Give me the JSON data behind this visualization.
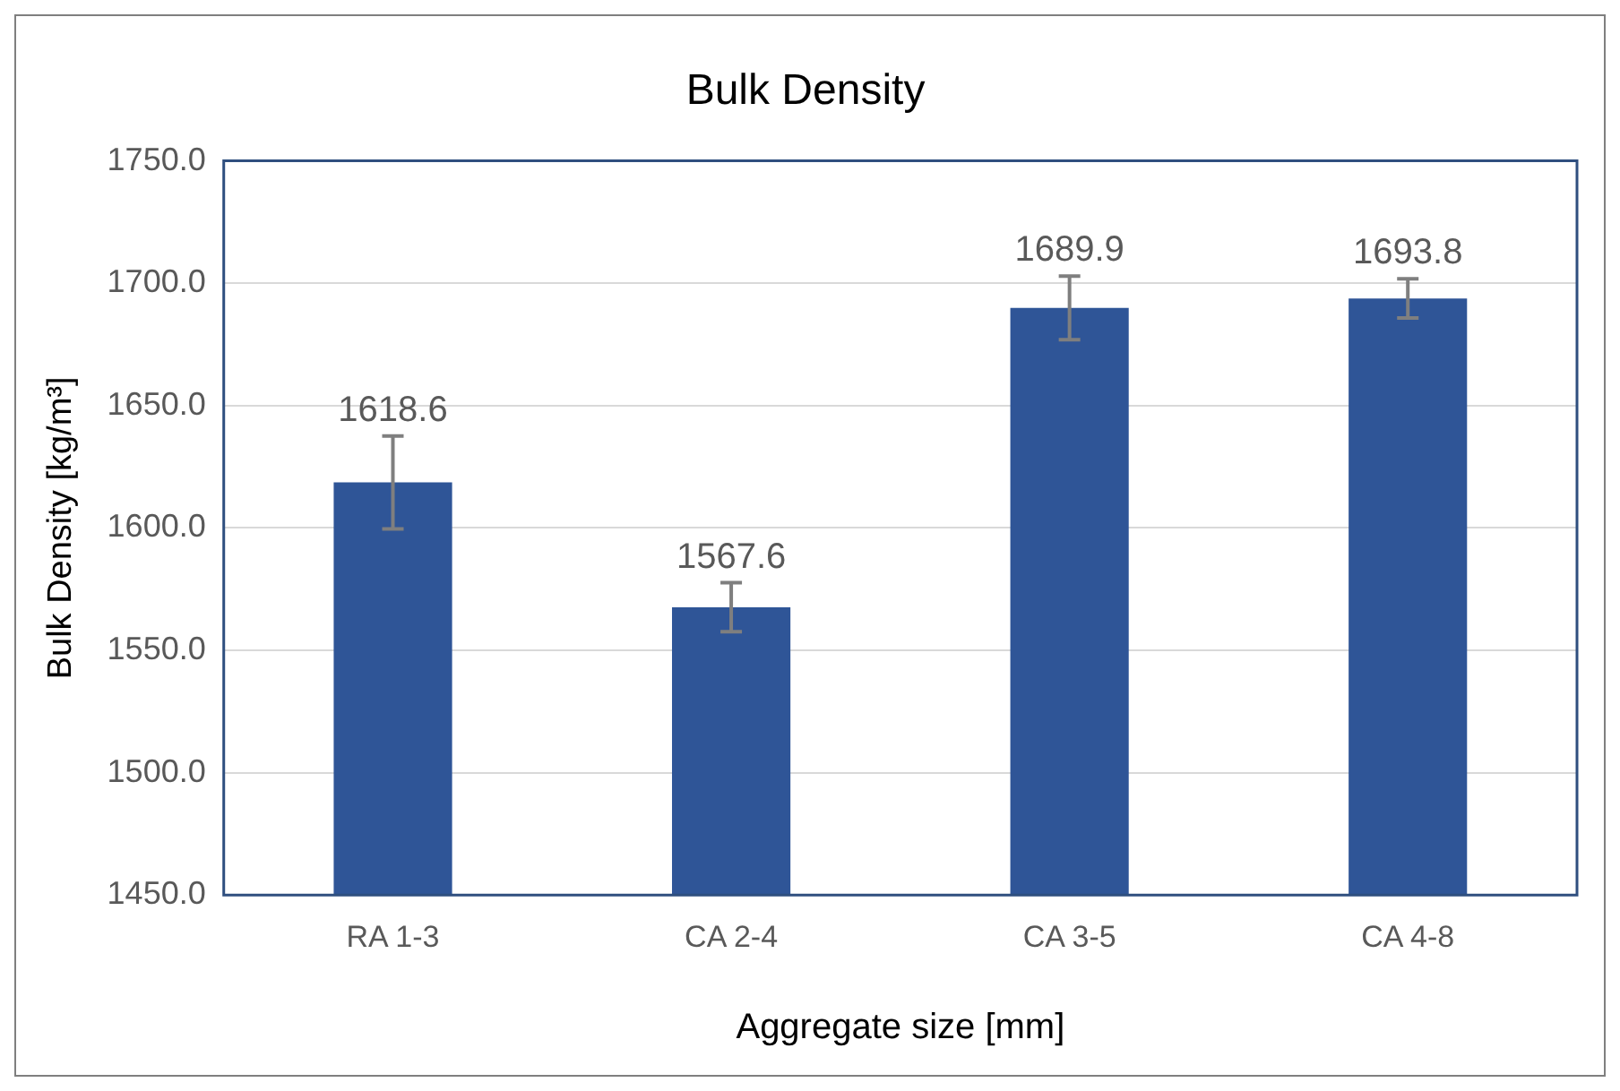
{
  "chart_data": {
    "type": "bar",
    "title": "Bulk Density",
    "xlabel": "Aggregate size [mm]",
    "ylabel": "Bulk Density [kg/m³]",
    "categories": [
      "RA 1-3",
      "CA 2-4",
      "CA 3-5",
      "CA 4-8"
    ],
    "values": [
      1618.6,
      1567.6,
      1689.9,
      1693.8
    ],
    "errors": [
      19,
      10,
      13,
      8
    ],
    "color": "#2f5597",
    "ylim": [
      1450,
      1750
    ],
    "yticks": [
      {
        "value": 1450,
        "label": "1450.0"
      },
      {
        "value": 1500,
        "label": "1500.0"
      },
      {
        "value": 1550,
        "label": "1550.0"
      },
      {
        "value": 1600,
        "label": "1600.0"
      },
      {
        "value": 1650,
        "label": "1650.0"
      },
      {
        "value": 1700,
        "label": "1700.0"
      },
      {
        "value": 1750,
        "label": "1750.0"
      }
    ],
    "grid": "y",
    "data_labels": true
  }
}
